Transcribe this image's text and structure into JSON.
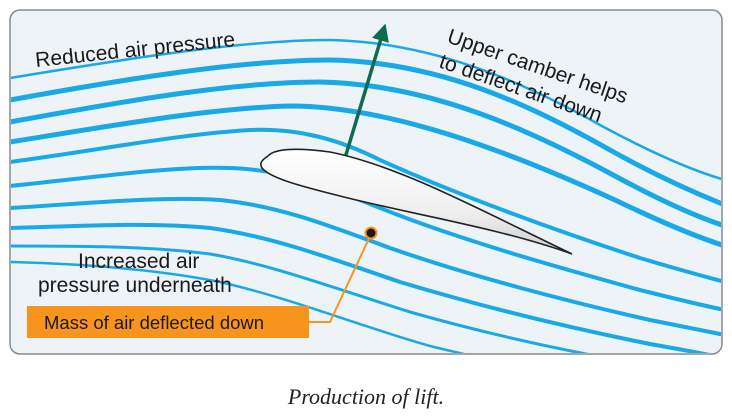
{
  "diagram": {
    "labels": {
      "reduced_pressure": "Reduced air pressure",
      "upper_camber_line1": "Upper camber helps",
      "upper_camber_line2": "to deflect air down",
      "increased_pressure_line1": "Increased air",
      "increased_pressure_line2": "pressure underneath",
      "mass_deflected": "Mass of air deflected down"
    },
    "caption": "Production of lift.",
    "colors": {
      "panel_fill": "#eef3f7",
      "panel_border": "#8a8a8a",
      "streamline": "#19a9e8",
      "lift_arrow": "#0d6b4e",
      "callout": "#f7941d",
      "airfoil_fill": "#f2f2f2"
    }
  }
}
